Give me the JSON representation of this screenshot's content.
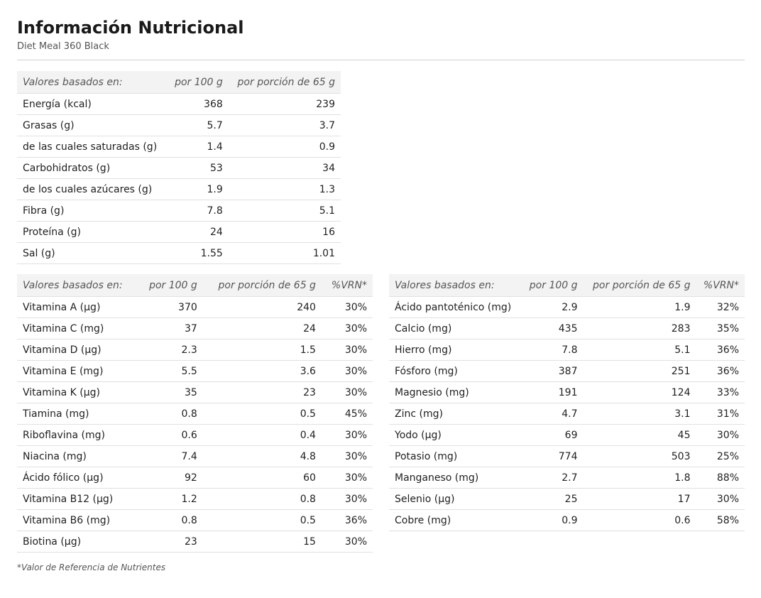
{
  "header": {
    "title": "Información Nutricional",
    "subtitle": "Diet Meal 360 Black"
  },
  "macros": {
    "headers": [
      "Valores basados en:",
      "por 100 g",
      "por porción de 65 g"
    ],
    "rows": [
      [
        "Energía (kcal)",
        "368",
        "239"
      ],
      [
        "Grasas (g)",
        "5.7",
        "3.7"
      ],
      [
        "de las cuales saturadas (g)",
        "1.4",
        "0.9"
      ],
      [
        "Carbohidratos (g)",
        "53",
        "34"
      ],
      [
        "de los cuales azúcares (g)",
        "1.9",
        "1.3"
      ],
      [
        "Fibra (g)",
        "7.8",
        "5.1"
      ],
      [
        "Proteína (g)",
        "24",
        "16"
      ],
      [
        "Sal (g)",
        "1.55",
        "1.01"
      ]
    ]
  },
  "vitamins": {
    "headers": [
      "Valores basados en:",
      "por 100 g",
      "por porción de 65 g",
      "%VRN*"
    ],
    "rows": [
      [
        "Vitamina A (µg)",
        "370",
        "240",
        "30%"
      ],
      [
        "Vitamina C (mg)",
        "37",
        "24",
        "30%"
      ],
      [
        "Vitamina D (µg)",
        "2.3",
        "1.5",
        "30%"
      ],
      [
        "Vitamina E (mg)",
        "5.5",
        "3.6",
        "30%"
      ],
      [
        "Vitamina K (µg)",
        "35",
        "23",
        "30%"
      ],
      [
        "Tiamina (mg)",
        "0.8",
        "0.5",
        "45%"
      ],
      [
        "Riboflavina (mg)",
        "0.6",
        "0.4",
        "30%"
      ],
      [
        "Niacina (mg)",
        "7.4",
        "4.8",
        "30%"
      ],
      [
        "Ácido fólico (µg)",
        "92",
        "60",
        "30%"
      ],
      [
        "Vitamina B12 (µg)",
        "1.2",
        "0.8",
        "30%"
      ],
      [
        "Vitamina B6 (mg)",
        "0.8",
        "0.5",
        "36%"
      ],
      [
        "Biotina (µg)",
        "23",
        "15",
        "30%"
      ]
    ]
  },
  "minerals": {
    "headers": [
      "Valores basados en:",
      "por 100 g",
      "por porción de 65 g",
      "%VRN*"
    ],
    "rows": [
      [
        "Ácido pantoténico (mg)",
        "2.9",
        "1.9",
        "32%"
      ],
      [
        "Calcio (mg)",
        "435",
        "283",
        "35%"
      ],
      [
        "Hierro (mg)",
        "7.8",
        "5.1",
        "36%"
      ],
      [
        "Fósforo (mg)",
        "387",
        "251",
        "36%"
      ],
      [
        "Magnesio (mg)",
        "191",
        "124",
        "33%"
      ],
      [
        "Zinc (mg)",
        "4.7",
        "3.1",
        "31%"
      ],
      [
        "Yodo (µg)",
        "69",
        "45",
        "30%"
      ],
      [
        "Potasio (mg)",
        "774",
        "503",
        "25%"
      ],
      [
        "Manganeso (mg)",
        "2.7",
        "1.8",
        "88%"
      ],
      [
        "Selenio (µg)",
        "25",
        "17",
        "30%"
      ],
      [
        "Cobre (mg)",
        "0.9",
        "0.6",
        "58%"
      ]
    ]
  },
  "footnote": "*Valor de Referencia de Nutrientes"
}
